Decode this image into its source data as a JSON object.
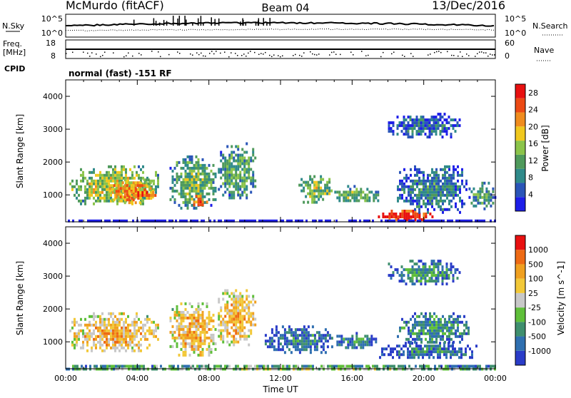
{
  "header": {
    "station": "McMurdo (fitACF)",
    "beam": "Beam 04",
    "date": "13/Dec/2016"
  },
  "noise_panel": {
    "left_label": "N.Sky",
    "right_label": "N.Search",
    "left_ticks": [
      "10^5",
      "10^0"
    ],
    "right_ticks": [
      "10^5",
      "10^0"
    ]
  },
  "freq_panel": {
    "left_label_1": "Freq.",
    "left_label_2": "[MHz]",
    "right_label": "Nave",
    "left_ticks": [
      "18",
      "8"
    ],
    "right_ticks": [
      "60",
      "0"
    ]
  },
  "cpid": {
    "label": "CPID",
    "mode": "normal (fast) -151 RF"
  },
  "chart_data": [
    {
      "type": "heatmap",
      "title": "Power",
      "xlabel": "Time UT",
      "ylabel": "Slant Range [km]",
      "x_ticks": [
        "00:00",
        "04:00",
        "08:00",
        "12:00",
        "16:00",
        "20:00",
        "00:00"
      ],
      "xlim_hours": [
        0,
        24
      ],
      "y_ticks": [
        1000,
        2000,
        3000,
        4000
      ],
      "ylim_km": [
        180,
        4500
      ],
      "colorbar": {
        "label": "Power [dB]",
        "ticks": [
          4,
          8,
          12,
          16,
          20,
          24,
          28
        ],
        "range": [
          0,
          30
        ],
        "colors": [
          "#1d1ee8",
          "#2a55b8",
          "#2f8a8a",
          "#4f9a5c",
          "#8bc44a",
          "#f0c81e",
          "#f08c1e",
          "#ec4a14",
          "#e81010"
        ]
      },
      "regions": [
        {
          "t0": 0.2,
          "t1": 5.2,
          "r0": 700,
          "r1": 1900,
          "level": 0.55
        },
        {
          "t0": 2.3,
          "t1": 4.9,
          "r0": 800,
          "r1": 1500,
          "level": 0.75
        },
        {
          "t0": 3.4,
          "t1": 5.0,
          "r0": 900,
          "r1": 1200,
          "level": 0.85
        },
        {
          "t0": 5.8,
          "t1": 8.4,
          "r0": 600,
          "r1": 2200,
          "level": 0.45
        },
        {
          "t0": 7.0,
          "t1": 8.0,
          "r0": 700,
          "r1": 1000,
          "level": 0.85
        },
        {
          "t0": 8.5,
          "t1": 10.6,
          "r0": 900,
          "r1": 2600,
          "level": 0.4
        },
        {
          "t0": 13.0,
          "t1": 14.9,
          "r0": 800,
          "r1": 1600,
          "level": 0.5
        },
        {
          "t0": 15.0,
          "t1": 17.4,
          "r0": 800,
          "r1": 1300,
          "level": 0.45
        },
        {
          "t0": 17.2,
          "t1": 20.5,
          "r0": 250,
          "r1": 550,
          "level": 0.98
        },
        {
          "t0": 18.5,
          "t1": 22.5,
          "r0": 500,
          "r1": 1900,
          "level": 0.3
        },
        {
          "t0": 18.0,
          "t1": 22.0,
          "r0": 2800,
          "r1": 3500,
          "level": 0.25
        },
        {
          "t0": 22.5,
          "t1": 24.0,
          "r0": 600,
          "r1": 1400,
          "level": 0.4
        },
        {
          "t0": 0.0,
          "t1": 24.0,
          "r0": 180,
          "r1": 250,
          "level": 0.08
        }
      ]
    },
    {
      "type": "heatmap",
      "title": "Velocity",
      "xlabel": "Time UT",
      "ylabel": "Slant Range [km]",
      "x_ticks": [
        "00:00",
        "04:00",
        "08:00",
        "12:00",
        "16:00",
        "20:00",
        "00:00"
      ],
      "xlim_hours": [
        0,
        24
      ],
      "y_ticks": [
        1000,
        2000,
        3000,
        4000
      ],
      "ylim_km": [
        180,
        4500
      ],
      "colorbar": {
        "label": "Velocity [m s^-1]",
        "ticks": [
          "1000",
          "500",
          "100",
          "25",
          "-25",
          "-100",
          "-500",
          "-1000"
        ],
        "colors": [
          "#2a3cc8",
          "#2f6fb0",
          "#3f8f6e",
          "#5fbf3a",
          "#c8c8c8",
          "#f2c838",
          "#f0a020",
          "#ee6a14",
          "#e81010"
        ]
      },
      "regions": [
        {
          "t0": 0.2,
          "t1": 5.2,
          "r0": 700,
          "r1": 1900,
          "level": 0.68
        },
        {
          "t0": 5.8,
          "t1": 8.4,
          "r0": 600,
          "r1": 2200,
          "level": 0.68
        },
        {
          "t0": 8.5,
          "t1": 10.6,
          "r0": 900,
          "r1": 2600,
          "level": 0.7
        },
        {
          "t0": 11.0,
          "t1": 15.0,
          "r0": 700,
          "r1": 1500,
          "level": 0.22
        },
        {
          "t0": 15.0,
          "t1": 17.4,
          "r0": 800,
          "r1": 1300,
          "level": 0.25
        },
        {
          "t0": 17.5,
          "t1": 23.0,
          "r0": 500,
          "r1": 1000,
          "level": 0.2
        },
        {
          "t0": 18.5,
          "t1": 22.5,
          "r0": 1000,
          "r1": 1900,
          "level": 0.3
        },
        {
          "t0": 18.0,
          "t1": 22.0,
          "r0": 2800,
          "r1": 3500,
          "level": 0.3
        },
        {
          "t0": 0.0,
          "t1": 24.0,
          "r0": 180,
          "r1": 300,
          "level": 0.48
        }
      ]
    }
  ]
}
